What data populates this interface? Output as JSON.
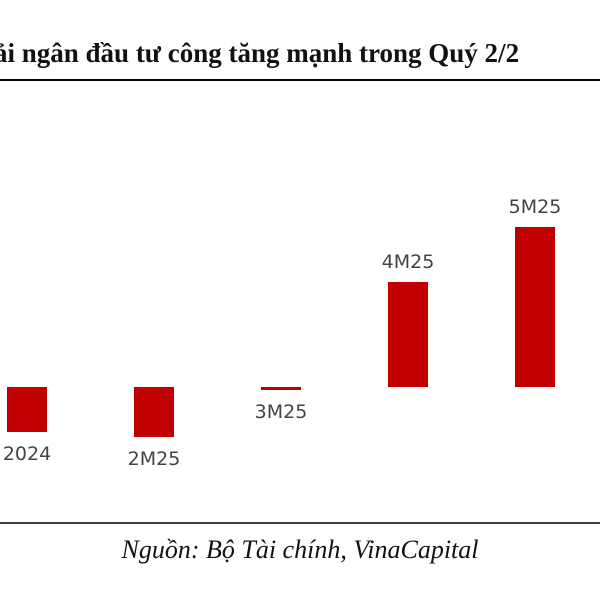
{
  "chart_data": {
    "type": "bar",
    "title": "ải ngân đầu tư công tăng mạnh trong Quý 2/2",
    "categories": [
      "2024",
      "2M25",
      "3M25",
      "4M25",
      "5M25"
    ],
    "values": [
      -4.5,
      -5.0,
      -0.3,
      10.5,
      16.0
    ],
    "xlabel": "",
    "ylabel": "",
    "grid": false,
    "legend": "none",
    "bar_color": "#c00000"
  },
  "source": "Nguồn: Bộ Tài chính, VinaCapital"
}
